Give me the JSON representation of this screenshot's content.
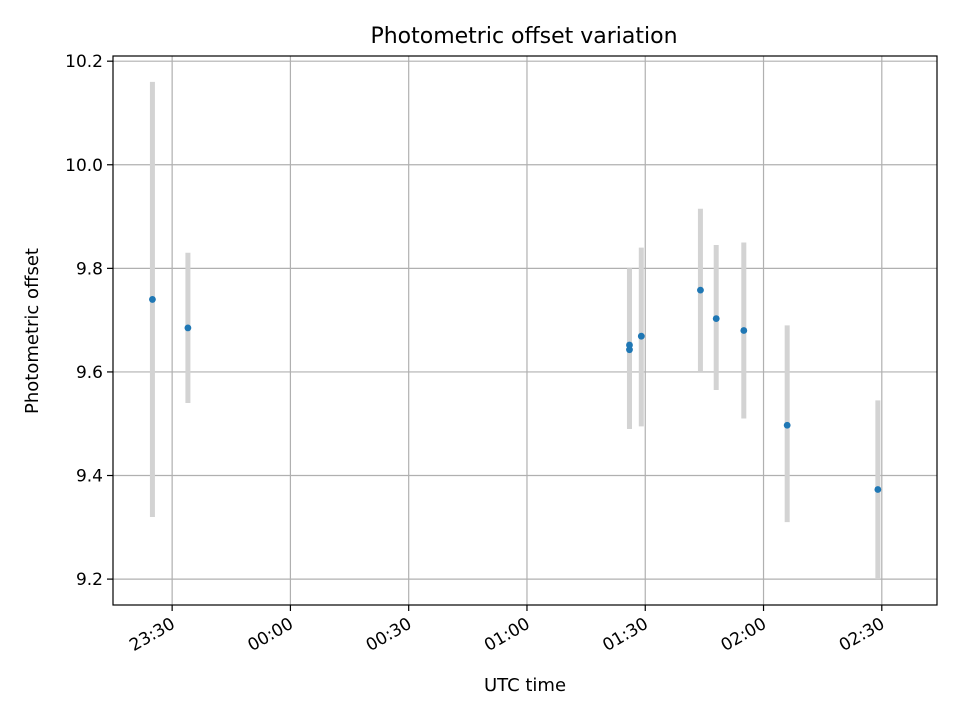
{
  "chart_data": {
    "type": "scatter",
    "title": "Photometric offset variation",
    "xlabel": "UTC time",
    "ylabel": "Photometric offset",
    "xlim": [
      "23:15",
      "02:44"
    ],
    "ylim": [
      9.15,
      10.21
    ],
    "xticks": [
      "23:30",
      "00:00",
      "00:30",
      "01:00",
      "01:30",
      "02:00",
      "02:30"
    ],
    "yticks": [
      "9.2",
      "9.4",
      "9.6",
      "9.8",
      "10.0",
      "10.2"
    ],
    "grid": true,
    "colors": {
      "point": "#1f77b4",
      "errorbar": "#d3d3d3",
      "grid": "#b0b0b0"
    },
    "points": [
      {
        "t": "23:25",
        "y": 9.74,
        "err_low": 9.32,
        "err_high": 10.16
      },
      {
        "t": "23:34",
        "y": 9.685,
        "err_low": 9.54,
        "err_high": 9.83
      },
      {
        "t": "01:26",
        "y": 9.643,
        "err_low": 9.49,
        "err_high": 9.8
      },
      {
        "t": "01:26",
        "y": 9.652,
        "err_low": 9.49,
        "err_high": 9.8
      },
      {
        "t": "01:29",
        "y": 9.669,
        "err_low": 9.495,
        "err_high": 9.84
      },
      {
        "t": "01:44",
        "y": 9.758,
        "err_low": 9.6,
        "err_high": 9.915
      },
      {
        "t": "01:48",
        "y": 9.703,
        "err_low": 9.565,
        "err_high": 9.845
      },
      {
        "t": "01:55",
        "y": 9.68,
        "err_low": 9.51,
        "err_high": 9.85
      },
      {
        "t": "02:06",
        "y": 9.497,
        "err_low": 9.31,
        "err_high": 9.69
      },
      {
        "t": "02:29",
        "y": 9.373,
        "err_low": 9.2,
        "err_high": 9.545
      }
    ]
  }
}
